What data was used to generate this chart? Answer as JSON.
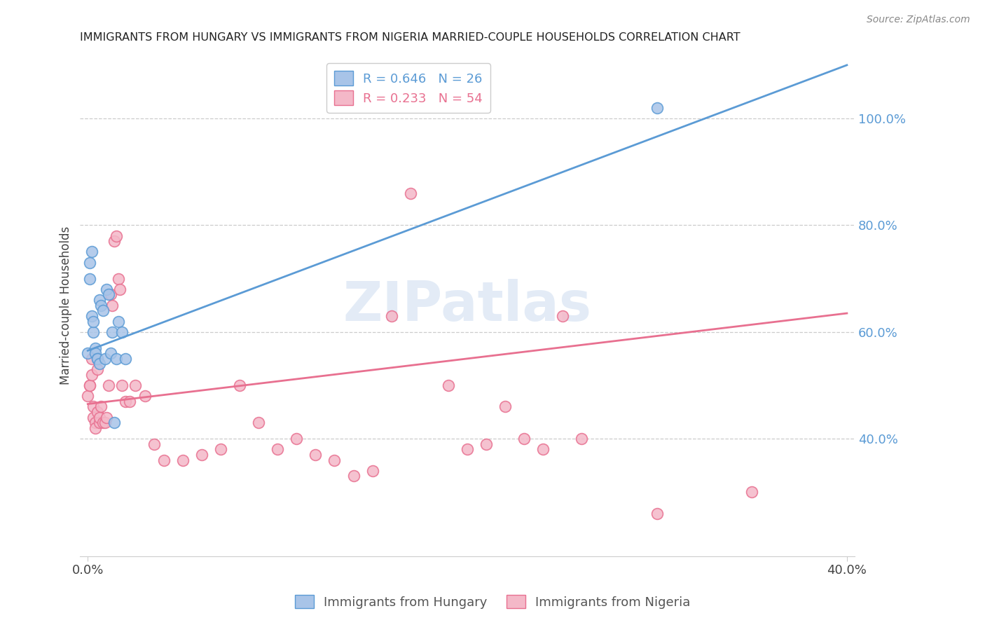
{
  "title": "IMMIGRANTS FROM HUNGARY VS IMMIGRANTS FROM NIGERIA MARRIED-COUPLE HOUSEHOLDS CORRELATION CHART",
  "source": "Source: ZipAtlas.com",
  "ylabel": "Married-couple Households",
  "legend1_R": "0.646",
  "legend1_N": "26",
  "legend2_R": "0.233",
  "legend2_N": "54",
  "hungary_color": "#a8c4e8",
  "hungary_edge": "#5b9bd5",
  "nigeria_color": "#f4b8c8",
  "nigeria_edge": "#e87090",
  "line1_color": "#5b9bd5",
  "line2_color": "#e87090",
  "hungary_x": [
    0.0,
    0.001,
    0.001,
    0.002,
    0.002,
    0.003,
    0.003,
    0.004,
    0.004,
    0.005,
    0.005,
    0.006,
    0.006,
    0.007,
    0.008,
    0.009,
    0.01,
    0.011,
    0.012,
    0.013,
    0.014,
    0.015,
    0.016,
    0.018,
    0.02,
    0.3
  ],
  "hungary_y": [
    0.56,
    0.7,
    0.73,
    0.75,
    0.63,
    0.6,
    0.62,
    0.57,
    0.56,
    0.55,
    0.55,
    0.54,
    0.66,
    0.65,
    0.64,
    0.55,
    0.68,
    0.67,
    0.56,
    0.6,
    0.43,
    0.55,
    0.62,
    0.6,
    0.55,
    1.02
  ],
  "nigeria_x": [
    0.0,
    0.001,
    0.001,
    0.002,
    0.002,
    0.003,
    0.003,
    0.004,
    0.004,
    0.005,
    0.005,
    0.006,
    0.006,
    0.007,
    0.008,
    0.009,
    0.01,
    0.011,
    0.012,
    0.013,
    0.014,
    0.015,
    0.016,
    0.017,
    0.018,
    0.02,
    0.022,
    0.025,
    0.03,
    0.035,
    0.04,
    0.05,
    0.06,
    0.07,
    0.08,
    0.09,
    0.1,
    0.11,
    0.12,
    0.13,
    0.14,
    0.15,
    0.17,
    0.19,
    0.2,
    0.21,
    0.22,
    0.23,
    0.24,
    0.25,
    0.26,
    0.3,
    0.35,
    0.16
  ],
  "nigeria_y": [
    0.48,
    0.5,
    0.5,
    0.52,
    0.55,
    0.46,
    0.44,
    0.43,
    0.42,
    0.53,
    0.45,
    0.43,
    0.44,
    0.46,
    0.43,
    0.43,
    0.44,
    0.5,
    0.67,
    0.65,
    0.77,
    0.78,
    0.7,
    0.68,
    0.5,
    0.47,
    0.47,
    0.5,
    0.48,
    0.39,
    0.36,
    0.36,
    0.37,
    0.38,
    0.5,
    0.43,
    0.38,
    0.4,
    0.37,
    0.36,
    0.33,
    0.34,
    0.86,
    0.5,
    0.38,
    0.39,
    0.46,
    0.4,
    0.38,
    0.63,
    0.4,
    0.26,
    0.3,
    0.63
  ],
  "blue_line_x": [
    0.0,
    0.4
  ],
  "blue_line_y": [
    0.565,
    1.1
  ],
  "pink_line_x": [
    0.0,
    0.4
  ],
  "pink_line_y": [
    0.465,
    0.635
  ],
  "xlim": [
    -0.004,
    0.404
  ],
  "ylim": [
    0.18,
    1.12
  ],
  "yticks": [
    0.4,
    0.6,
    0.8,
    1.0
  ],
  "ytick_labels": [
    "40.0%",
    "60.0%",
    "80.0%",
    "100.0%"
  ],
  "xtick_left": "0.0%",
  "xtick_right": "40.0%",
  "bottom_legend_label1": "Immigrants from Hungary",
  "bottom_legend_label2": "Immigrants from Nigeria"
}
